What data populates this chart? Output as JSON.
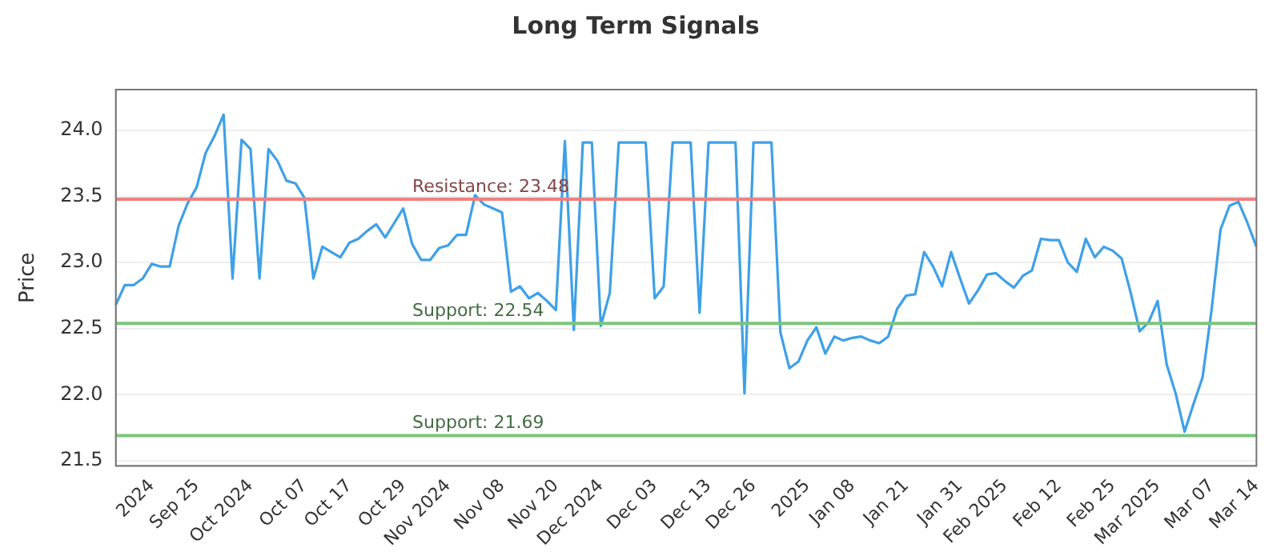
{
  "chart_data": {
    "type": "line",
    "title": "Long Term Signals",
    "ylabel": "Price",
    "categories": [
      null,
      null,
      null,
      null,
      "2024",
      null,
      null,
      null,
      null,
      "Sep 25",
      null,
      null,
      null,
      null,
      null,
      "Oct 2024",
      null,
      null,
      null,
      null,
      null,
      "Oct 07",
      null,
      null,
      null,
      null,
      "Oct 17",
      null,
      null,
      null,
      null,
      null,
      "Oct 29",
      null,
      null,
      null,
      null,
      "Nov 2024",
      null,
      null,
      null,
      null,
      null,
      "Nov 08",
      null,
      null,
      null,
      null,
      null,
      "Nov 20",
      null,
      null,
      null,
      null,
      "Dec 2024",
      null,
      null,
      null,
      null,
      null,
      "Dec 03",
      null,
      null,
      null,
      null,
      null,
      "Dec 13",
      null,
      null,
      null,
      null,
      "Dec 26",
      null,
      null,
      null,
      null,
      null,
      "2025",
      null,
      null,
      null,
      null,
      "Jan 08",
      null,
      null,
      null,
      null,
      null,
      "Jan 21",
      null,
      null,
      null,
      null,
      null,
      "Jan 31",
      null,
      null,
      null,
      null,
      "Feb 2025",
      null,
      null,
      null,
      null,
      null,
      "Feb 12",
      null,
      null,
      null,
      null,
      null,
      "Feb 25",
      null,
      null,
      null,
      null,
      "Mar 2025",
      null,
      null,
      null,
      null,
      null,
      "Mar 07",
      null,
      null,
      null,
      null,
      "Mar 14"
    ],
    "series": [
      {
        "color": "#3ea0e8",
        "values": [
          22.68,
          22.83,
          22.83,
          22.88,
          22.99,
          22.97,
          22.97,
          23.28,
          23.45,
          23.57,
          23.83,
          23.96,
          24.12,
          22.88,
          23.93,
          23.86,
          22.88,
          23.86,
          23.77,
          23.62,
          23.6,
          23.49,
          22.88,
          23.12,
          23.08,
          23.04,
          23.15,
          23.18,
          23.24,
          23.29,
          23.19,
          23.3,
          23.41,
          23.14,
          23.02,
          23.02,
          23.11,
          23.13,
          23.21,
          23.21,
          23.51,
          23.44,
          23.41,
          23.38,
          22.78,
          22.82,
          22.73,
          22.77,
          22.71,
          22.64,
          23.92,
          22.49,
          23.91,
          23.91,
          22.52,
          22.77,
          23.91,
          23.91,
          23.91,
          23.91,
          22.73,
          22.82,
          23.91,
          23.91,
          23.91,
          22.62,
          23.91,
          23.91,
          23.91,
          23.91,
          22.01,
          23.91,
          23.91,
          23.91,
          22.47,
          22.2,
          22.25,
          22.41,
          22.51,
          22.31,
          22.44,
          22.41,
          22.43,
          22.44,
          22.41,
          22.39,
          22.44,
          22.65,
          22.75,
          22.76,
          23.08,
          22.97,
          22.82,
          23.08,
          22.88,
          22.69,
          22.79,
          22.91,
          22.92,
          22.86,
          22.81,
          22.9,
          22.94,
          23.18,
          23.17,
          23.17,
          23.0,
          22.93,
          23.18,
          23.04,
          23.12,
          23.09,
          23.03,
          22.77,
          22.48,
          22.55,
          22.71,
          22.23,
          22.01,
          21.72,
          21.93,
          22.13,
          22.64,
          23.25,
          23.43,
          23.46,
          23.3,
          23.12
        ]
      }
    ],
    "ylim": [
      21.46,
      24.31
    ],
    "yticks": [
      {
        "value": 21.5,
        "label": "21.5"
      },
      {
        "value": 22,
        "label": "22.0"
      },
      {
        "value": 22.5,
        "label": "22.5"
      },
      {
        "value": 23,
        "label": "23.0"
      },
      {
        "value": 23.5,
        "label": "23.5"
      },
      {
        "value": 24,
        "label": "24.0"
      }
    ],
    "ref_lines": [
      {
        "axis": "y",
        "value": 23.48,
        "label": "Resistance: 23.48",
        "color": "#f08080"
      },
      {
        "axis": "y",
        "value": 22.54,
        "label": "Support: 22.54",
        "color": "#7cc47c"
      },
      {
        "axis": "y",
        "value": 21.69,
        "label": "Support: 21.69",
        "color": "#7cc47c"
      }
    ],
    "grid": "y",
    "legend": false,
    "marker": "none",
    "line_style": "solid"
  }
}
